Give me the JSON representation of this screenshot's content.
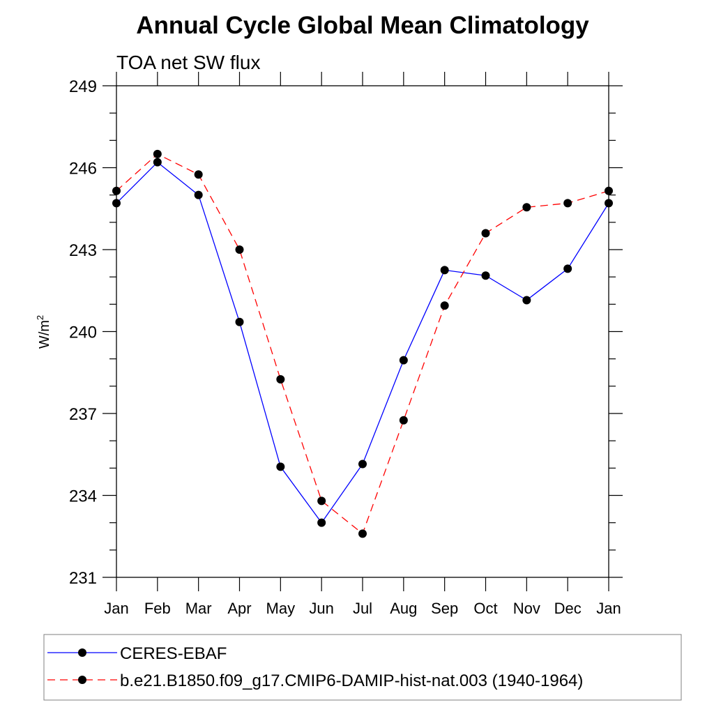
{
  "chart_data": {
    "type": "line",
    "title": "Annual Cycle Global Mean Climatology",
    "subtitle": "TOA net SW flux",
    "ylabel": "W/m",
    "ylabel_sup": "2",
    "xlabel": "",
    "categories": [
      "Jan",
      "Feb",
      "Mar",
      "Apr",
      "May",
      "Jun",
      "Jul",
      "Aug",
      "Sep",
      "Oct",
      "Nov",
      "Dec",
      "Jan"
    ],
    "ylim": [
      231,
      249
    ],
    "yticks": [
      231,
      234,
      237,
      240,
      243,
      246,
      249
    ],
    "y_minor_step": 1,
    "grid": false,
    "legend_position": "bottom",
    "series": [
      {
        "name": "CERES-EBAF",
        "color": "#0000ff",
        "line_style": "solid",
        "marker": "filled-circle",
        "values": [
          244.7,
          246.2,
          245.0,
          240.35,
          235.05,
          233.0,
          235.15,
          238.95,
          242.25,
          242.05,
          241.15,
          242.3,
          244.7
        ]
      },
      {
        "name": "b.e21.B1850.f09_g17.CMIP6-DAMIP-hist-nat.003 (1940-1964)",
        "color": "#ff0000",
        "line_style": "dashed",
        "marker": "filled-circle",
        "values": [
          245.15,
          246.5,
          245.75,
          243.0,
          238.25,
          233.8,
          232.6,
          236.75,
          240.95,
          243.6,
          244.55,
          244.7,
          245.15
        ]
      }
    ]
  }
}
